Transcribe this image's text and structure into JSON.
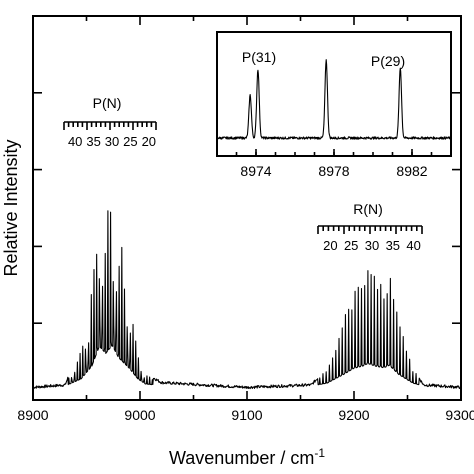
{
  "chart_data": {
    "type": "line",
    "xlabel": "Wavenumber / cm",
    "xlabel_sup": "-1",
    "ylabel": "Relative Intensity",
    "xlim": [
      8900,
      9300
    ],
    "x_ticks": [
      "8900",
      "9000",
      "9100",
      "9200",
      "9300"
    ],
    "y_ticks_shown_without_labels": true,
    "grid": false,
    "series": [
      {
        "points": [
          [
            8900,
            0.02
          ],
          [
            8930,
            0.03
          ],
          [
            8945,
            0.2
          ],
          [
            8955,
            0.5
          ],
          [
            8962,
            0.97
          ],
          [
            8968,
            0.8
          ],
          [
            8974,
            0.99
          ],
          [
            8980,
            0.7
          ],
          [
            8990,
            0.45
          ],
          [
            8998,
            0.2
          ],
          [
            9005,
            0.08
          ],
          [
            9020,
            0.04
          ],
          [
            9100,
            0.02
          ],
          [
            9160,
            0.03
          ],
          [
            9175,
            0.1
          ],
          [
            9190,
            0.3
          ],
          [
            9200,
            0.45
          ],
          [
            9208,
            0.5
          ],
          [
            9213,
            0.56
          ],
          [
            9220,
            0.5
          ],
          [
            9228,
            0.46
          ],
          [
            9233,
            0.52
          ],
          [
            9242,
            0.3
          ],
          [
            9255,
            0.1
          ],
          [
            9265,
            0.03
          ],
          [
            9300,
            0.02
          ]
        ]
      }
    ],
    "branches": [
      {
        "label": "P(N)",
        "scale": [
          "40",
          "35",
          "30",
          "25",
          "20"
        ]
      },
      {
        "label": "R(N)",
        "scale": [
          "20",
          "25",
          "30",
          "35",
          "40"
        ]
      }
    ],
    "inset": {
      "xlim": [
        8972,
        8984
      ],
      "x_ticks": [
        "8974",
        "8978",
        "8982"
      ],
      "peaks": [
        {
          "x": 8973.7,
          "height": 0.55
        },
        {
          "x": 8974.1,
          "height": 0.88
        },
        {
          "x": 8977.6,
          "height": 1.0
        },
        {
          "x": 8981.4,
          "height": 0.9
        }
      ],
      "annotations": [
        "P(31)",
        "P(29)"
      ]
    }
  }
}
